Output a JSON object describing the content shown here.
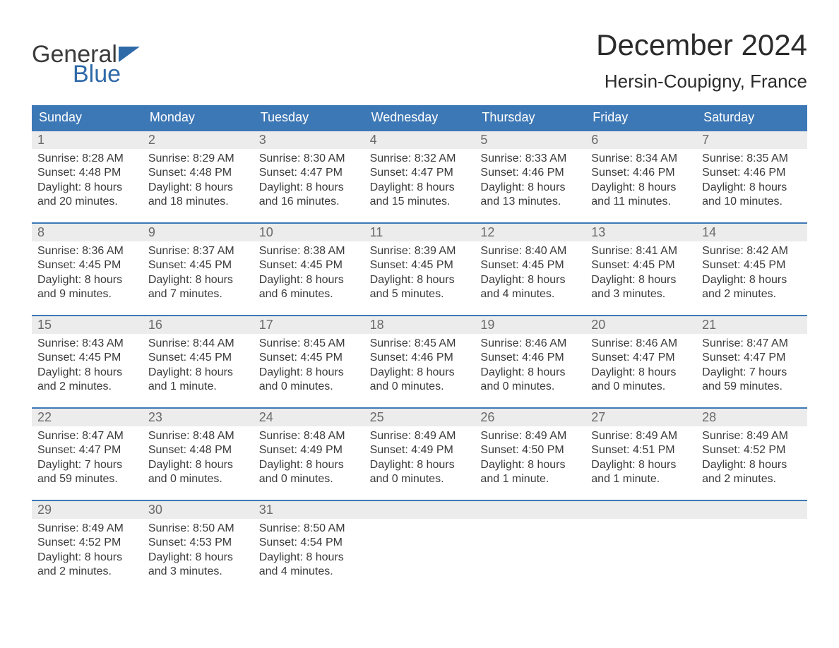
{
  "branding": {
    "logo_text_1": "General",
    "logo_text_2": "Blue",
    "logo_color_primary": "#3b3b3b",
    "logo_color_accent": "#2f6aa8"
  },
  "header": {
    "month_title": "December 2024",
    "location": "Hersin-Coupigny, France"
  },
  "styling": {
    "header_band_color": "#3d78b6",
    "header_text_color": "#ffffff",
    "day_num_bg": "#ececec",
    "day_num_color": "#6a6a6a",
    "body_text_color": "#3b3b3b",
    "week_separator_color": "#3d78b6",
    "page_bg": "#ffffff",
    "font_family": "Arial",
    "month_title_fontsize_pt": 32,
    "location_fontsize_pt": 20,
    "weekday_fontsize_pt": 14,
    "daynum_fontsize_pt": 14,
    "body_fontsize_pt": 12
  },
  "weekdays": [
    "Sunday",
    "Monday",
    "Tuesday",
    "Wednesday",
    "Thursday",
    "Friday",
    "Saturday"
  ],
  "weeks": [
    [
      {
        "n": "1",
        "sunrise": "Sunrise: 8:28 AM",
        "sunset": "Sunset: 4:48 PM",
        "d1": "Daylight: 8 hours",
        "d2": "and 20 minutes."
      },
      {
        "n": "2",
        "sunrise": "Sunrise: 8:29 AM",
        "sunset": "Sunset: 4:48 PM",
        "d1": "Daylight: 8 hours",
        "d2": "and 18 minutes."
      },
      {
        "n": "3",
        "sunrise": "Sunrise: 8:30 AM",
        "sunset": "Sunset: 4:47 PM",
        "d1": "Daylight: 8 hours",
        "d2": "and 16 minutes."
      },
      {
        "n": "4",
        "sunrise": "Sunrise: 8:32 AM",
        "sunset": "Sunset: 4:47 PM",
        "d1": "Daylight: 8 hours",
        "d2": "and 15 minutes."
      },
      {
        "n": "5",
        "sunrise": "Sunrise: 8:33 AM",
        "sunset": "Sunset: 4:46 PM",
        "d1": "Daylight: 8 hours",
        "d2": "and 13 minutes."
      },
      {
        "n": "6",
        "sunrise": "Sunrise: 8:34 AM",
        "sunset": "Sunset: 4:46 PM",
        "d1": "Daylight: 8 hours",
        "d2": "and 11 minutes."
      },
      {
        "n": "7",
        "sunrise": "Sunrise: 8:35 AM",
        "sunset": "Sunset: 4:46 PM",
        "d1": "Daylight: 8 hours",
        "d2": "and 10 minutes."
      }
    ],
    [
      {
        "n": "8",
        "sunrise": "Sunrise: 8:36 AM",
        "sunset": "Sunset: 4:45 PM",
        "d1": "Daylight: 8 hours",
        "d2": "and 9 minutes."
      },
      {
        "n": "9",
        "sunrise": "Sunrise: 8:37 AM",
        "sunset": "Sunset: 4:45 PM",
        "d1": "Daylight: 8 hours",
        "d2": "and 7 minutes."
      },
      {
        "n": "10",
        "sunrise": "Sunrise: 8:38 AM",
        "sunset": "Sunset: 4:45 PM",
        "d1": "Daylight: 8 hours",
        "d2": "and 6 minutes."
      },
      {
        "n": "11",
        "sunrise": "Sunrise: 8:39 AM",
        "sunset": "Sunset: 4:45 PM",
        "d1": "Daylight: 8 hours",
        "d2": "and 5 minutes."
      },
      {
        "n": "12",
        "sunrise": "Sunrise: 8:40 AM",
        "sunset": "Sunset: 4:45 PM",
        "d1": "Daylight: 8 hours",
        "d2": "and 4 minutes."
      },
      {
        "n": "13",
        "sunrise": "Sunrise: 8:41 AM",
        "sunset": "Sunset: 4:45 PM",
        "d1": "Daylight: 8 hours",
        "d2": "and 3 minutes."
      },
      {
        "n": "14",
        "sunrise": "Sunrise: 8:42 AM",
        "sunset": "Sunset: 4:45 PM",
        "d1": "Daylight: 8 hours",
        "d2": "and 2 minutes."
      }
    ],
    [
      {
        "n": "15",
        "sunrise": "Sunrise: 8:43 AM",
        "sunset": "Sunset: 4:45 PM",
        "d1": "Daylight: 8 hours",
        "d2": "and 2 minutes."
      },
      {
        "n": "16",
        "sunrise": "Sunrise: 8:44 AM",
        "sunset": "Sunset: 4:45 PM",
        "d1": "Daylight: 8 hours",
        "d2": "and 1 minute."
      },
      {
        "n": "17",
        "sunrise": "Sunrise: 8:45 AM",
        "sunset": "Sunset: 4:45 PM",
        "d1": "Daylight: 8 hours",
        "d2": "and 0 minutes."
      },
      {
        "n": "18",
        "sunrise": "Sunrise: 8:45 AM",
        "sunset": "Sunset: 4:46 PM",
        "d1": "Daylight: 8 hours",
        "d2": "and 0 minutes."
      },
      {
        "n": "19",
        "sunrise": "Sunrise: 8:46 AM",
        "sunset": "Sunset: 4:46 PM",
        "d1": "Daylight: 8 hours",
        "d2": "and 0 minutes."
      },
      {
        "n": "20",
        "sunrise": "Sunrise: 8:46 AM",
        "sunset": "Sunset: 4:47 PM",
        "d1": "Daylight: 8 hours",
        "d2": "and 0 minutes."
      },
      {
        "n": "21",
        "sunrise": "Sunrise: 8:47 AM",
        "sunset": "Sunset: 4:47 PM",
        "d1": "Daylight: 7 hours",
        "d2": "and 59 minutes."
      }
    ],
    [
      {
        "n": "22",
        "sunrise": "Sunrise: 8:47 AM",
        "sunset": "Sunset: 4:47 PM",
        "d1": "Daylight: 7 hours",
        "d2": "and 59 minutes."
      },
      {
        "n": "23",
        "sunrise": "Sunrise: 8:48 AM",
        "sunset": "Sunset: 4:48 PM",
        "d1": "Daylight: 8 hours",
        "d2": "and 0 minutes."
      },
      {
        "n": "24",
        "sunrise": "Sunrise: 8:48 AM",
        "sunset": "Sunset: 4:49 PM",
        "d1": "Daylight: 8 hours",
        "d2": "and 0 minutes."
      },
      {
        "n": "25",
        "sunrise": "Sunrise: 8:49 AM",
        "sunset": "Sunset: 4:49 PM",
        "d1": "Daylight: 8 hours",
        "d2": "and 0 minutes."
      },
      {
        "n": "26",
        "sunrise": "Sunrise: 8:49 AM",
        "sunset": "Sunset: 4:50 PM",
        "d1": "Daylight: 8 hours",
        "d2": "and 1 minute."
      },
      {
        "n": "27",
        "sunrise": "Sunrise: 8:49 AM",
        "sunset": "Sunset: 4:51 PM",
        "d1": "Daylight: 8 hours",
        "d2": "and 1 minute."
      },
      {
        "n": "28",
        "sunrise": "Sunrise: 8:49 AM",
        "sunset": "Sunset: 4:52 PM",
        "d1": "Daylight: 8 hours",
        "d2": "and 2 minutes."
      }
    ],
    [
      {
        "n": "29",
        "sunrise": "Sunrise: 8:49 AM",
        "sunset": "Sunset: 4:52 PM",
        "d1": "Daylight: 8 hours",
        "d2": "and 2 minutes."
      },
      {
        "n": "30",
        "sunrise": "Sunrise: 8:50 AM",
        "sunset": "Sunset: 4:53 PM",
        "d1": "Daylight: 8 hours",
        "d2": "and 3 minutes."
      },
      {
        "n": "31",
        "sunrise": "Sunrise: 8:50 AM",
        "sunset": "Sunset: 4:54 PM",
        "d1": "Daylight: 8 hours",
        "d2": "and 4 minutes."
      },
      null,
      null,
      null,
      null
    ]
  ]
}
